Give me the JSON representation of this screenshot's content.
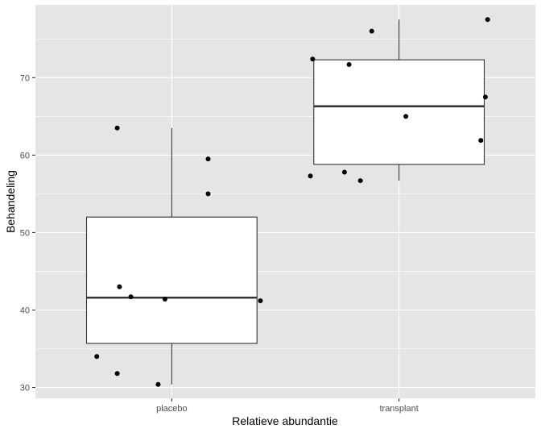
{
  "chart_data": {
    "type": "boxplot",
    "xlabel": "Relatieve abundantie",
    "ylabel": "Behandeling",
    "categories": [
      "placebo",
      "transplant"
    ],
    "ylim": [
      28.6,
      79.4
    ],
    "y_ticks": [
      30,
      40,
      50,
      60,
      70
    ],
    "y_tick_labels": [
      "30",
      "40",
      "50",
      "60",
      "70"
    ],
    "grid": true,
    "colors": {
      "panel": "#e5e5e5",
      "grid_major": "#ffffff",
      "box_fill": "#ffffff",
      "box_line": "#333333",
      "point": "#000000"
    },
    "boxes": [
      {
        "category": "placebo",
        "lower_whisker": 30.4,
        "q1": 35.7,
        "median": 41.6,
        "q3": 52.0,
        "upper_whisker": 63.5
      },
      {
        "category": "transplant",
        "lower_whisker": 56.7,
        "q1": 58.8,
        "median": 66.3,
        "q3": 72.3,
        "upper_whisker": 77.5
      }
    ],
    "points": [
      {
        "category": "placebo",
        "jitter": -0.33,
        "y": 34.0
      },
      {
        "category": "placebo",
        "jitter": -0.24,
        "y": 31.8
      },
      {
        "category": "placebo",
        "jitter": -0.24,
        "y": 63.5
      },
      {
        "category": "placebo",
        "jitter": -0.23,
        "y": 43.0
      },
      {
        "category": "placebo",
        "jitter": -0.18,
        "y": 41.7
      },
      {
        "category": "placebo",
        "jitter": -0.06,
        "y": 30.4
      },
      {
        "category": "placebo",
        "jitter": -0.03,
        "y": 41.4
      },
      {
        "category": "placebo",
        "jitter": 0.16,
        "y": 59.5
      },
      {
        "category": "placebo",
        "jitter": 0.16,
        "y": 55.0
      },
      {
        "category": "placebo",
        "jitter": 0.39,
        "y": 41.2
      },
      {
        "category": "transplant",
        "jitter": -0.39,
        "y": 57.3
      },
      {
        "category": "transplant",
        "jitter": -0.38,
        "y": 72.4
      },
      {
        "category": "transplant",
        "jitter": -0.24,
        "y": 57.8
      },
      {
        "category": "transplant",
        "jitter": -0.22,
        "y": 71.7
      },
      {
        "category": "transplant",
        "jitter": -0.17,
        "y": 56.7
      },
      {
        "category": "transplant",
        "jitter": -0.12,
        "y": 76.0
      },
      {
        "category": "transplant",
        "jitter": 0.03,
        "y": 65.0
      },
      {
        "category": "transplant",
        "jitter": 0.36,
        "y": 61.9
      },
      {
        "category": "transplant",
        "jitter": 0.38,
        "y": 67.5
      },
      {
        "category": "transplant",
        "jitter": 0.39,
        "y": 77.5
      }
    ]
  }
}
